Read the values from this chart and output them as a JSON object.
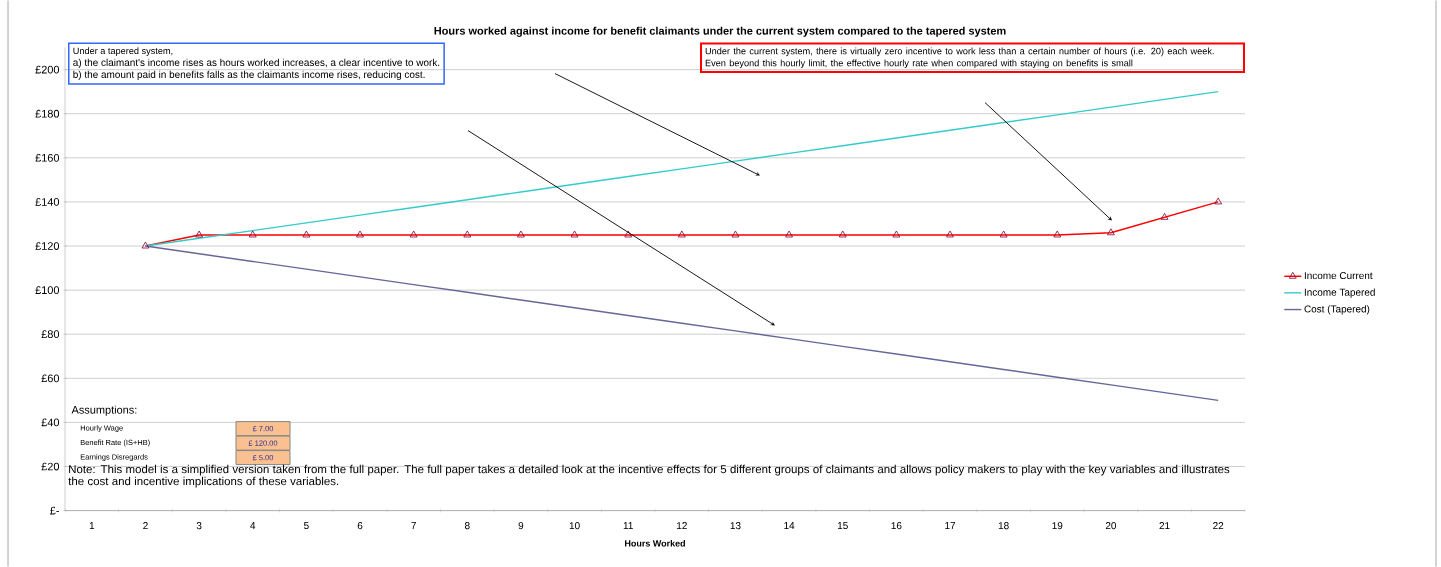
{
  "chart_data": {
    "type": "line",
    "title": "Hours worked against income for benefit claimants under  the current system compared to the tapered system",
    "xlabel": "Hours Worked",
    "categories": [
      "1",
      "2",
      "3",
      "4",
      "5",
      "6",
      "7",
      "8",
      "9",
      "10",
      "11",
      "12",
      "13",
      "14",
      "15",
      "16",
      "17",
      "18",
      "19",
      "20",
      "21",
      "22"
    ],
    "series": [
      {
        "name": "Income Current",
        "color": "#ff0000",
        "marker": "triangle",
        "values": [
          null,
          120,
          125,
          125,
          125,
          125,
          125,
          125,
          125,
          125,
          125,
          125,
          125,
          125,
          125,
          125,
          125,
          125,
          125,
          126,
          133,
          140
        ]
      },
      {
        "name": "Income Tapered",
        "color": "#33cccc",
        "values": [
          null,
          120,
          123.5,
          127,
          130.5,
          134,
          137.5,
          141,
          144.5,
          148,
          151.5,
          155,
          158.5,
          162,
          165.5,
          169,
          172.5,
          176,
          179.5,
          183,
          186.5,
          190
        ]
      },
      {
        "name": "Cost (Tapered)",
        "color": "#666699",
        "values": [
          null,
          120,
          116.5,
          113,
          109.5,
          106,
          102.5,
          99,
          95.5,
          92,
          88.5,
          85,
          81.5,
          78,
          74.5,
          71,
          67.5,
          64,
          60.5,
          57,
          53.5,
          50
        ]
      }
    ],
    "ylim": [
      0,
      210
    ],
    "yticks": [
      {
        "value": 0,
        "label": "£-"
      },
      {
        "value": 20,
        "label": "£20"
      },
      {
        "value": 40,
        "label": "£40"
      },
      {
        "value": 60,
        "label": "£60"
      },
      {
        "value": 80,
        "label": "£80"
      },
      {
        "value": 100,
        "label": "£100"
      },
      {
        "value": 120,
        "label": "£120"
      },
      {
        "value": 140,
        "label": "£140"
      },
      {
        "value": 160,
        "label": "£160"
      },
      {
        "value": 180,
        "label": "£180"
      },
      {
        "value": 200,
        "label": "£200"
      }
    ],
    "grid": "y",
    "legend": "right",
    "annotations": [
      "Under a tapered system,",
      "a) the claimant's income rises as hours worked increases, a clear incentive to work.",
      "b) the amount paid in benefits falls as the claimants income rises, reducing cost.",
      "Under the current system, there is virtually zero incentive to work less than a certain number of hours (i.e. 20) each week.  Even beyond this hourly limit, the effective hourly rate when compared with staying on benefits is small",
      "Assumptions:",
      "Hourly Wage",
      "Benefit Rate (IS+HB)",
      "Earnings Disregards",
      "£ 7.00",
      "£ 120.00",
      "£ 5.00",
      "Note:  This model is a simplified version taken from the full paper.  The full paper takes a detailed look at the incentive effects for 5 different groups of claimants and allows policy makers to play with the key variables and illustrates the cost and incentive implications of these variables."
    ]
  }
}
